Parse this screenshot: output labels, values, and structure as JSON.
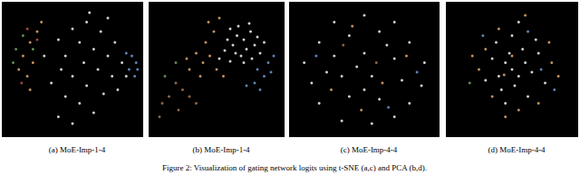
{
  "caption": "Figure 2: Visualization of gating network logits using t-SNE (a,c) and PCA (b,d).",
  "chart_data": [
    {
      "type": "scatter",
      "title": "(a) MoE-Imp-1-4",
      "xlim": [
        0,
        100
      ],
      "ylim": [
        0,
        100
      ],
      "tick_labels": false,
      "series": [
        {
          "color": "#e6e6e6",
          "values": [
            [
              50,
              80
            ],
            [
              60,
              85
            ],
            [
              70,
              78
            ],
            [
              55,
              70
            ],
            [
              65,
              65
            ],
            [
              75,
              60
            ],
            [
              80,
              70
            ],
            [
              45,
              60
            ],
            [
              58,
              55
            ],
            [
              68,
              50
            ],
            [
              78,
              45
            ],
            [
              85,
              55
            ],
            [
              50,
              45
            ],
            [
              60,
              38
            ],
            [
              72,
              32
            ],
            [
              82,
              35
            ],
            [
              55,
              25
            ],
            [
              65,
              18
            ],
            [
              45,
              30
            ],
            [
              40,
              15
            ],
            [
              50,
              10
            ],
            [
              35,
              40
            ],
            [
              40,
              72
            ],
            [
              62,
              92
            ],
            [
              75,
              88
            ],
            [
              88,
              45
            ],
            [
              30,
              60
            ],
            [
              42,
              50
            ]
          ]
        },
        {
          "color": "#d9a066",
          "values": [
            [
              15,
              60
            ],
            [
              20,
              70
            ],
            [
              25,
              78
            ],
            [
              12,
              50
            ],
            [
              18,
              45
            ],
            [
              22,
              55
            ],
            [
              28,
              85
            ],
            [
              20,
              35
            ]
          ]
        },
        {
          "color": "#6a9a5a",
          "values": [
            [
              10,
              65
            ],
            [
              15,
              75
            ],
            [
              8,
              55
            ],
            [
              22,
              65
            ]
          ]
        },
        {
          "color": "#b05040",
          "values": [
            [
              18,
              80
            ],
            [
              25,
              72
            ],
            [
              14,
              40
            ]
          ]
        },
        {
          "color": "#6a8fc8",
          "values": [
            [
              92,
              60
            ],
            [
              95,
              55
            ],
            [
              90,
              50
            ],
            [
              94,
              45
            ],
            [
              88,
              62
            ],
            [
              96,
              50
            ]
          ]
        }
      ]
    },
    {
      "type": "scatter",
      "title": "(b) MoE-Imp-1-4",
      "xlim": [
        0,
        100
      ],
      "ylim": [
        0,
        100
      ],
      "tick_labels": false,
      "series": [
        {
          "color": "#e6e6e6",
          "values": [
            [
              60,
              80
            ],
            [
              65,
              75
            ],
            [
              70,
              72
            ],
            [
              75,
              78
            ],
            [
              72,
              65
            ],
            [
              68,
              60
            ],
            [
              78,
              68
            ],
            [
              80,
              74
            ],
            [
              62,
              68
            ],
            [
              58,
              72
            ],
            [
              66,
              82
            ],
            [
              74,
              84
            ],
            [
              82,
              62
            ],
            [
              76,
              58
            ],
            [
              70,
              55
            ],
            [
              64,
              62
            ],
            [
              56,
              64
            ],
            [
              85,
              70
            ],
            [
              60,
              56
            ],
            [
              52,
              58
            ]
          ]
        },
        {
          "color": "#d9a066",
          "values": [
            [
              45,
              60
            ],
            [
              40,
              55
            ],
            [
              50,
              50
            ],
            [
              35,
              62
            ],
            [
              42,
              70
            ],
            [
              48,
              78
            ],
            [
              30,
              50
            ],
            [
              38,
              45
            ],
            [
              55,
              45
            ],
            [
              28,
              58
            ],
            [
              44,
              85
            ],
            [
              52,
              88
            ]
          ]
        },
        {
          "color": "#a0704a",
          "values": [
            [
              20,
              40
            ],
            [
              25,
              35
            ],
            [
              15,
              30
            ],
            [
              30,
              30
            ],
            [
              10,
              25
            ],
            [
              35,
              25
            ],
            [
              22,
              20
            ],
            [
              8,
              15
            ]
          ]
        },
        {
          "color": "#6a8fc8",
          "values": [
            [
              80,
              50
            ],
            [
              85,
              45
            ],
            [
              78,
              40
            ],
            [
              88,
              55
            ],
            [
              90,
              48
            ],
            [
              82,
              35
            ],
            [
              72,
              38
            ],
            [
              92,
              60
            ]
          ]
        },
        {
          "color": "#6a9a5a",
          "values": [
            [
              20,
              55
            ],
            [
              12,
              45
            ]
          ]
        }
      ]
    },
    {
      "type": "scatter",
      "title": "(c) MoE-Imp-4-4",
      "xlim": [
        0,
        100
      ],
      "ylim": [
        0,
        100
      ],
      "tick_labels": false,
      "series": [
        {
          "color": "#e6e6e6",
          "values": [
            [
              30,
              85
            ],
            [
              50,
              90
            ],
            [
              70,
              85
            ],
            [
              20,
              70
            ],
            [
              40,
              75
            ],
            [
              60,
              78
            ],
            [
              80,
              70
            ],
            [
              10,
              55
            ],
            [
              30,
              60
            ],
            [
              50,
              62
            ],
            [
              70,
              58
            ],
            [
              90,
              55
            ],
            [
              15,
              40
            ],
            [
              35,
              45
            ],
            [
              55,
              45
            ],
            [
              75,
              42
            ],
            [
              88,
              38
            ],
            [
              20,
              25
            ],
            [
              40,
              30
            ],
            [
              60,
              28
            ],
            [
              80,
              25
            ],
            [
              35,
              12
            ],
            [
              55,
              10
            ],
            [
              70,
              15
            ],
            [
              45,
              52
            ],
            [
              65,
              68
            ],
            [
              25,
              48
            ],
            [
              50,
              35
            ]
          ]
        },
        {
          "color": "#d9a066",
          "values": [
            [
              42,
              82
            ],
            [
              62,
              40
            ],
            [
              28,
              35
            ],
            [
              78,
              60
            ],
            [
              48,
              20
            ]
          ]
        },
        {
          "color": "#6a8fc8",
          "values": [
            [
              85,
              48
            ],
            [
              18,
              60
            ],
            [
              66,
              22
            ]
          ]
        },
        {
          "color": "#a0704a",
          "values": [
            [
              36,
              68
            ],
            [
              58,
              55
            ]
          ]
        }
      ]
    },
    {
      "type": "scatter",
      "title": "(d) MoE-Imp-4-4",
      "xlim": [
        0,
        100
      ],
      "ylim": [
        0,
        100
      ],
      "tick_labels": false,
      "series": [
        {
          "color": "#e6e6e6",
          "values": [
            [
              50,
              50
            ],
            [
              45,
              55
            ],
            [
              55,
              45
            ],
            [
              48,
              62
            ],
            [
              60,
              55
            ],
            [
              40,
              45
            ],
            [
              52,
              38
            ],
            [
              58,
              65
            ],
            [
              42,
              35
            ],
            [
              65,
              48
            ],
            [
              35,
              58
            ],
            [
              62,
              30
            ],
            [
              50,
              75
            ],
            [
              38,
              70
            ],
            [
              70,
              62
            ],
            [
              30,
              42
            ],
            [
              45,
              25
            ],
            [
              68,
              72
            ],
            [
              55,
              85
            ],
            [
              75,
              40
            ]
          ]
        },
        {
          "color": "#d9a066",
          "values": [
            [
              40,
              80
            ],
            [
              30,
              65
            ],
            [
              25,
              50
            ],
            [
              35,
              30
            ],
            [
              55,
              20
            ],
            [
              70,
              25
            ],
            [
              80,
              55
            ],
            [
              78,
              70
            ],
            [
              60,
              90
            ],
            [
              20,
              60
            ],
            [
              45,
              15
            ],
            [
              85,
              45
            ],
            [
              50,
              60
            ],
            [
              44,
              46
            ]
          ]
        },
        {
          "color": "#6a8fc8",
          "values": [
            [
              72,
              50
            ],
            [
              62,
              78
            ],
            [
              28,
              75
            ],
            [
              82,
              35
            ]
          ]
        },
        {
          "color": "#6a9a5a",
          "values": [
            [
              18,
              40
            ]
          ]
        }
      ]
    }
  ]
}
